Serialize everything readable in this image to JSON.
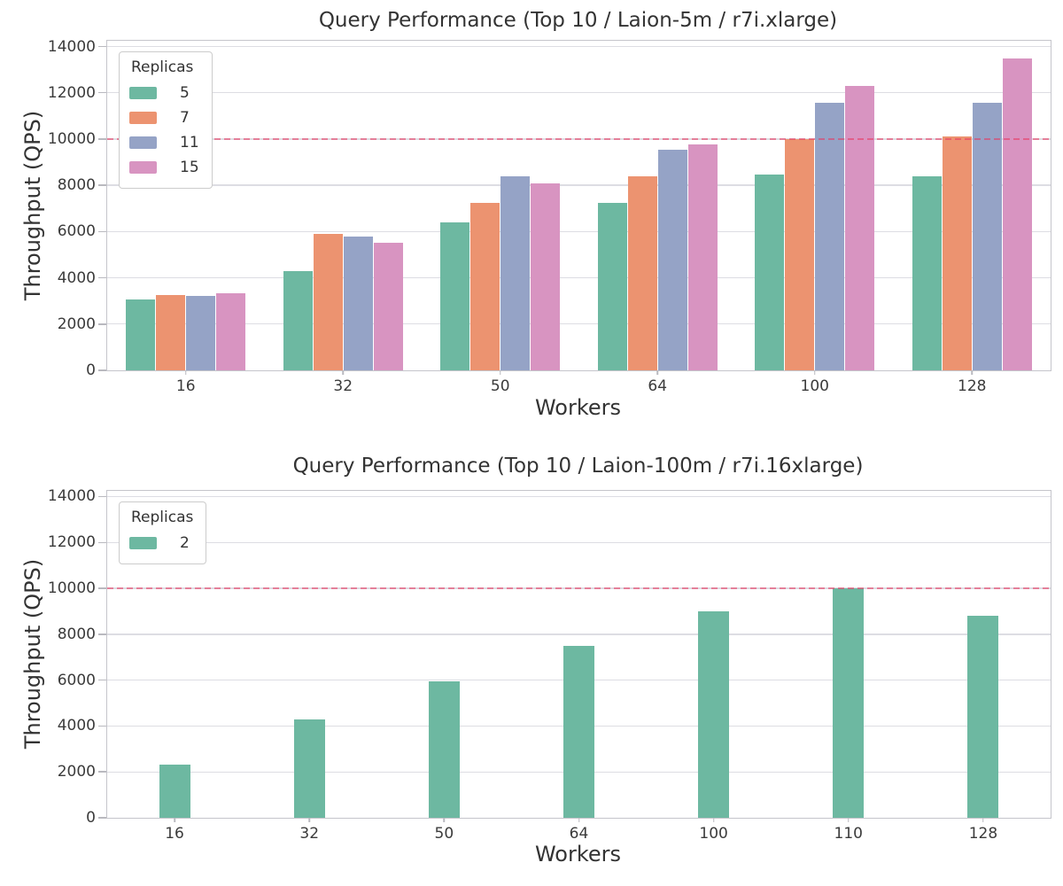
{
  "figure": {
    "background": "#ffffff"
  },
  "chart_data": [
    {
      "type": "bar",
      "title": "Query Performance (Top 10 / Laion-5m / r7i.xlarge)",
      "xlabel": "Workers",
      "ylabel": "Throughput (QPS)",
      "legend_title": "Replicas",
      "legend_position": "upper left",
      "grid": true,
      "categories": [
        "16",
        "32",
        "50",
        "64",
        "100",
        "128"
      ],
      "series": [
        {
          "name": "5",
          "color": "#6db8a1",
          "values": [
            3050,
            4300,
            6400,
            7250,
            8450,
            8400
          ]
        },
        {
          "name": "7",
          "color": "#ec9370",
          "values": [
            3250,
            5900,
            7250,
            8400,
            10000,
            10100
          ]
        },
        {
          "name": "11",
          "color": "#95a3c6",
          "values": [
            3200,
            5800,
            8400,
            9550,
            11550,
            11550
          ]
        },
        {
          "name": "15",
          "color": "#d894c1",
          "values": [
            3350,
            5500,
            8100,
            9750,
            12300,
            13500
          ]
        }
      ],
      "yticks": [
        0,
        2000,
        4000,
        6000,
        8000,
        10000,
        12000,
        14000
      ],
      "ylim": [
        0,
        14000
      ],
      "reference_line": {
        "y": 10000,
        "color": "rgba(233,52,93,0.55)",
        "style": "dashed"
      }
    },
    {
      "type": "bar",
      "title": "Query Performance (Top 10 / Laion-100m / r7i.16xlarge)",
      "xlabel": "Workers",
      "ylabel": "Throughput (QPS)",
      "legend_title": "Replicas",
      "legend_position": "upper left",
      "grid": true,
      "categories": [
        "16",
        "32",
        "50",
        "64",
        "100",
        "110",
        "128"
      ],
      "series": [
        {
          "name": "2",
          "color": "#6db8a1",
          "values": [
            2300,
            4300,
            5950,
            7500,
            9000,
            10000,
            8800
          ]
        }
      ],
      "yticks": [
        0,
        2000,
        4000,
        6000,
        8000,
        10000,
        12000,
        14000
      ],
      "ylim": [
        0,
        14000
      ],
      "reference_line": {
        "y": 10000,
        "color": "rgba(233,52,93,0.55)",
        "style": "dashed"
      }
    }
  ]
}
